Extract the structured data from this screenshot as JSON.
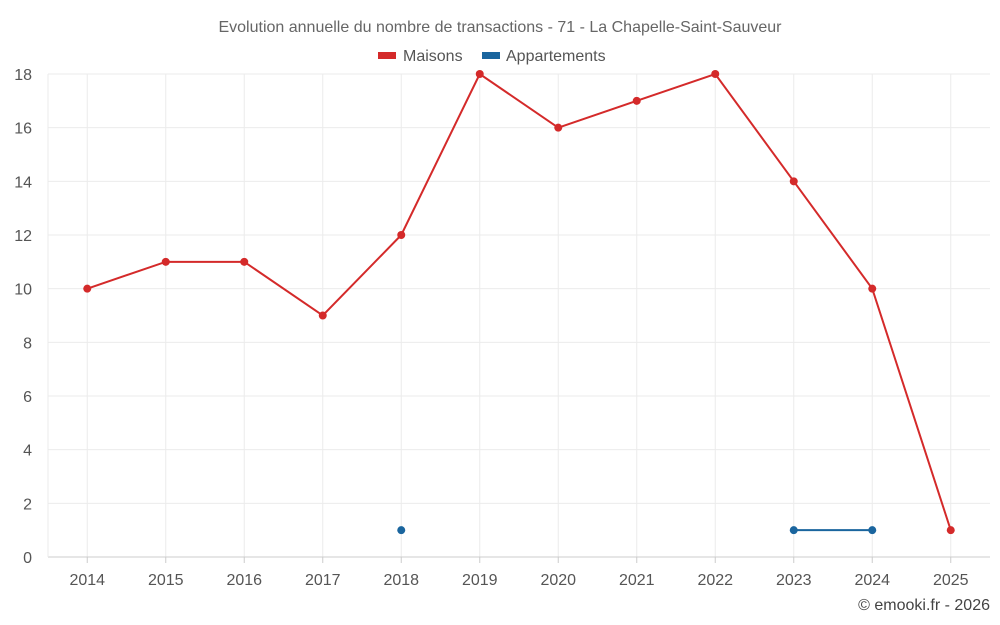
{
  "chart_data": {
    "type": "line",
    "title": "Evolution annuelle du nombre de transactions - 71 - La Chapelle-Saint-Sauveur",
    "categories": [
      "2014",
      "2015",
      "2016",
      "2017",
      "2018",
      "2019",
      "2020",
      "2021",
      "2022",
      "2023",
      "2024",
      "2025"
    ],
    "series": [
      {
        "name": "Maisons",
        "color": "#d42a2a",
        "values": [
          10,
          11,
          11,
          9,
          12,
          18,
          16,
          17,
          18,
          14,
          10,
          1
        ]
      },
      {
        "name": "Appartements",
        "color": "#1a659e",
        "values": [
          null,
          null,
          null,
          null,
          1,
          null,
          null,
          null,
          null,
          1,
          1,
          null
        ]
      }
    ],
    "ylim": [
      0,
      18
    ],
    "yticks": [
      "0",
      "2",
      "4",
      "6",
      "8",
      "10",
      "12",
      "14",
      "16",
      "18"
    ],
    "xlabel": "",
    "ylabel": "",
    "grid": true,
    "legend_position": "top-center"
  },
  "credit": "© emooki.fr - 2026"
}
